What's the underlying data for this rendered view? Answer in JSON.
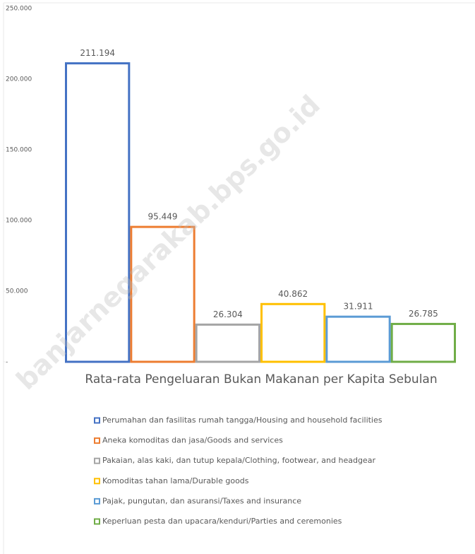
{
  "chart_data": {
    "type": "bar",
    "title": "Rata-rata Pengeluaran Bukan Makanan per Kapita Sebulan",
    "annotation": "banjarnegarakab.bps.go.id",
    "categories": [
      "Perumahan dan fasilitas rumah tangga/Housing and household facilities",
      "Aneka komoditas dan jasa/Goods and services",
      "Pakaian, alas kaki, dan tutup kepala/Clothing, footwear, and headgear",
      "Komoditas tahan lama/Durable goods",
      "Pajak, pungutan, dan asuransi/Taxes and insurance",
      "Keperluan pesta dan upacara/kenduri/Parties and ceremonies"
    ],
    "values": [
      211194,
      95449,
      26304,
      40862,
      31911,
      26785
    ],
    "value_labels": [
      "211.194",
      "95.449",
      "26.304",
      "40.862",
      "31.911",
      "26.785"
    ],
    "colors": [
      "#4472c4",
      "#ed7d31",
      "#a5a5a5",
      "#ffc000",
      "#5b9bd5",
      "#70ad47"
    ],
    "ylim": [
      0,
      250000
    ],
    "yticks": [
      {
        "value": 0,
        "label": "-"
      },
      {
        "value": 50000,
        "label": "50.000"
      },
      {
        "value": 100000,
        "label": "100.000"
      },
      {
        "value": 150000,
        "label": "150.000"
      },
      {
        "value": 200000,
        "label": "200.000"
      },
      {
        "value": 250000,
        "label": "250.000"
      }
    ],
    "legend": "bottom"
  }
}
